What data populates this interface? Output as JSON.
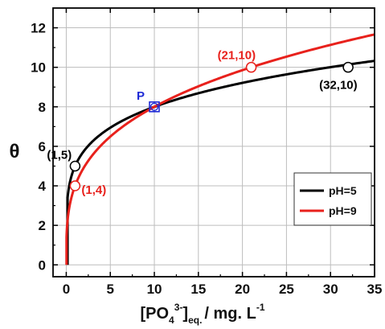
{
  "chart_data": {
    "type": "line",
    "xlabel": {
      "base": "[PO",
      "sub1": "4",
      "sup": "3-",
      "close": "]",
      "sub2": "eq.",
      "unit": "/ mg. L",
      "unit_sup": "-1"
    },
    "ylabel": "θ",
    "xlim": [
      -1.5,
      35
    ],
    "ylim": [
      -0.6,
      13
    ],
    "x_ticks": [
      0,
      5,
      10,
      15,
      20,
      25,
      30,
      35
    ],
    "y_ticks": [
      0,
      2,
      4,
      6,
      8,
      10,
      12
    ],
    "x_tick_labels": [
      "0",
      "5",
      "10",
      "15",
      "20",
      "25",
      "30",
      "35"
    ],
    "y_tick_labels": [
      "0",
      "2",
      "4",
      "6",
      "8",
      "10",
      "12"
    ],
    "grid": true,
    "legend_position": "bottom-right",
    "series": [
      {
        "name": "pH=5",
        "color": "#000000",
        "model": "power",
        "a": 5,
        "n": 0.204,
        "x_start": 0.15,
        "x_end": 35,
        "markers": [
          {
            "x": 1,
            "y": 5,
            "label": "(1,5)"
          },
          {
            "x": 32,
            "y": 10,
            "label": "(32,10)"
          }
        ]
      },
      {
        "name": "pH=9",
        "color": "#e8211c",
        "model": "power",
        "a": 4,
        "n": 0.301,
        "x_start": 0.03,
        "x_end": 35,
        "markers": [
          {
            "x": 1,
            "y": 4,
            "label": "(1,4)"
          },
          {
            "x": 21,
            "y": 10,
            "label": "(21,10)"
          }
        ]
      }
    ],
    "intersection": {
      "x": 10,
      "y": 8,
      "label": "P",
      "color": "#1f2bd6"
    }
  }
}
